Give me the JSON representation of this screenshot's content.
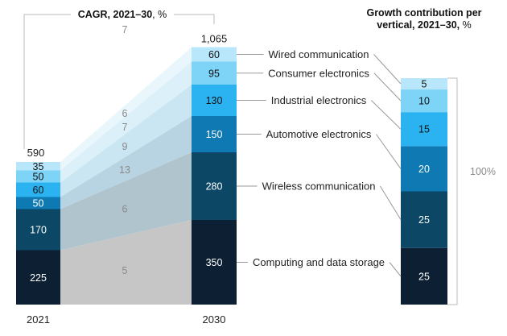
{
  "colors": {
    "segments": [
      "#0c1f33",
      "#0d4766",
      "#0e79b2",
      "#2ab3f0",
      "#7dd4f7",
      "#b8e6fa"
    ],
    "bands": [
      "#c6c6c6",
      "#b0c4ce",
      "#b8d4e2",
      "#cbe6f3",
      "#dcf0fa",
      "#e9f6fc"
    ],
    "guide": "#bbbbbb",
    "connector": "#9a9a9a"
  },
  "chart_data": [
    {
      "type": "bar",
      "title": "CAGR, 2021–30, %",
      "categories": [
        "2021",
        "2030"
      ],
      "series": [
        {
          "name": "Computing and data storage",
          "values": [
            225,
            350
          ],
          "cagr": "5"
        },
        {
          "name": "Wireless communication",
          "values": [
            170,
            280
          ],
          "cagr": "6"
        },
        {
          "name": "Automotive electronics",
          "values": [
            50,
            150
          ],
          "cagr": "13"
        },
        {
          "name": "Industrial electronics",
          "values": [
            60,
            130
          ],
          "cagr": "9"
        },
        {
          "name": "Consumer electronics",
          "values": [
            50,
            95
          ],
          "cagr": "7"
        },
        {
          "name": "Wired communication",
          "values": [
            35,
            60
          ],
          "cagr": "6"
        }
      ],
      "totals": [
        "590",
        "1,065"
      ],
      "top_cagr": "7"
    },
    {
      "type": "bar",
      "title": "Growth contribution per vertical, 2021–30, %",
      "title_lines": [
        "Growth contribution per",
        "vertical, 2021–30,",
        "%"
      ],
      "values": [
        25,
        25,
        20,
        15,
        10,
        5
      ],
      "total_label": "100%"
    }
  ]
}
